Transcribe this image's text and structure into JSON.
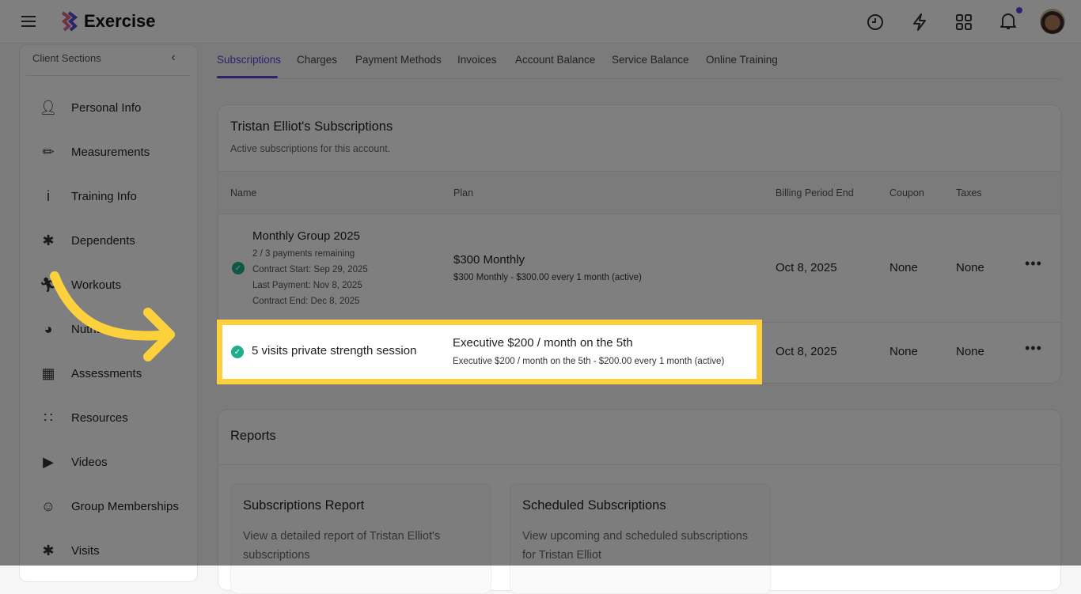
{
  "app": {
    "title": "Exercise",
    "notification_dot_color": "#5b46d6",
    "accent": "#5b46d6"
  },
  "sidebar": {
    "heading": "Client Sections",
    "items": [
      {
        "label": "Personal Info",
        "icon": "person-icon"
      },
      {
        "label": "Measurements",
        "icon": "ruler-icon"
      },
      {
        "label": "Training Info",
        "icon": "info-icon"
      },
      {
        "label": "Dependents",
        "icon": "family-icon"
      },
      {
        "label": "Workouts",
        "icon": "running-icon"
      },
      {
        "label": "Nutrition",
        "icon": "bowl-icon"
      },
      {
        "label": "Assessments",
        "icon": "clipboard-icon"
      },
      {
        "label": "Resources",
        "icon": "grid-icon"
      },
      {
        "label": "Videos",
        "icon": "video-icon"
      },
      {
        "label": "Group Memberships",
        "icon": "group-icon"
      },
      {
        "label": "Visits",
        "icon": "people-icon"
      }
    ]
  },
  "tabs": [
    "Subscriptions",
    "Charges",
    "Payment Methods",
    "Invoices",
    "Account Balance",
    "Service Balance",
    "Online Training"
  ],
  "subscriptions": {
    "title": "Tristan Elliot's Subscriptions",
    "subtitle": "Active subscriptions for this account.",
    "columns": [
      "Name",
      "Plan",
      "Billing Period End",
      "Coupon",
      "Taxes"
    ],
    "rows": [
      {
        "name": "Monthly Group 2025",
        "details": [
          "2 / 3 payments remaining",
          "Contract Start: Sep 29, 2025",
          "Last Payment: Nov 8, 2025",
          "Contract End: Dec 8, 2025"
        ],
        "plan": "$300 Monthly",
        "plan_detail": "$300 Monthly - $300.00 every 1 month (active)",
        "billing_end": "Oct 8, 2025",
        "coupon": "None",
        "taxes": "None",
        "status": "active"
      },
      {
        "name": "5 visits private strength session",
        "plan": "Executive $200 / month on the 5th",
        "plan_detail": "Executive $200 / month on the 5th - $200.00 every 1 month (active)",
        "billing_end": "Oct 8, 2025",
        "coupon": "None",
        "taxes": "None",
        "status": "active"
      }
    ]
  },
  "reports": {
    "title": "Reports",
    "cards": [
      {
        "title": "Subscriptions Report",
        "desc": "View a detailed report of Tristan Elliot's subscriptions"
      },
      {
        "title": "Scheduled Subscriptions",
        "desc": "View upcoming and scheduled subscriptions for Tristan Elliot"
      }
    ]
  },
  "highlight_color": "#fdd13c"
}
